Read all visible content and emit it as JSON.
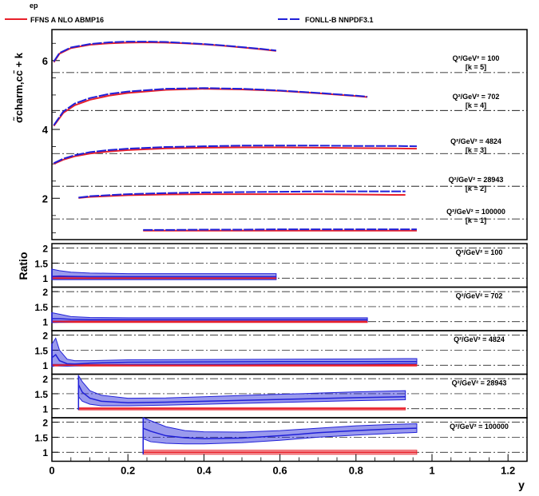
{
  "legend": {
    "header": "ep",
    "entries": [
      {
        "label": "FFNS A NLO ABMP16",
        "color": "#e8202a"
      },
      {
        "label": "FONLL-B NNPDF3.1",
        "color": "#2020d8"
      }
    ]
  },
  "chart_data": {
    "type": "line",
    "xlabel": "y",
    "x_ticks": [
      "0",
      "0.2",
      "0.4",
      "0.6",
      "0.8",
      "1",
      "1.2"
    ],
    "xlim": [
      0,
      1.25
    ],
    "top_panel": {
      "ylabel": "σ̃charm,cc̄ + k",
      "ylim": [
        0.8,
        6.9
      ],
      "y_ticks": [
        "2",
        "4",
        "6"
      ],
      "series_colors": {
        "ffns": "#e8202a",
        "fonll": "#2020d8"
      },
      "curves": [
        {
          "q2_label": "Q²/GeV² = 100",
          "k_label": "[k = 5]",
          "k": 5,
          "x": [
            0.005,
            0.02,
            0.05,
            0.1,
            0.15,
            0.2,
            0.25,
            0.3,
            0.35,
            0.4,
            0.45,
            0.5,
            0.55,
            0.59
          ],
          "ffns": [
            5.95,
            6.2,
            6.36,
            6.46,
            6.5,
            6.52,
            6.53,
            6.52,
            6.5,
            6.47,
            6.43,
            6.38,
            6.33,
            6.28
          ],
          "fonll": [
            5.97,
            6.22,
            6.38,
            6.48,
            6.53,
            6.55,
            6.55,
            6.54,
            6.51,
            6.48,
            6.44,
            6.39,
            6.34,
            6.29
          ]
        },
        {
          "q2_label": "Q²/GeV² = 702",
          "k_label": "[k = 4]",
          "k": 4,
          "x": [
            0.005,
            0.03,
            0.06,
            0.1,
            0.15,
            0.2,
            0.3,
            0.4,
            0.5,
            0.6,
            0.7,
            0.8,
            0.83
          ],
          "ffns": [
            4.1,
            4.48,
            4.7,
            4.86,
            4.98,
            5.06,
            5.15,
            5.18,
            5.16,
            5.12,
            5.05,
            4.97,
            4.94
          ],
          "fonll": [
            4.12,
            4.52,
            4.75,
            4.91,
            5.03,
            5.1,
            5.18,
            5.2,
            5.18,
            5.13,
            5.06,
            4.98,
            4.95
          ]
        },
        {
          "q2_label": "Q²/GeV² = 4824",
          "k_label": "[k = 3]",
          "k": 3,
          "x": [
            0.005,
            0.03,
            0.06,
            0.1,
            0.15,
            0.2,
            0.3,
            0.4,
            0.5,
            0.6,
            0.7,
            0.8,
            0.9,
            0.96
          ],
          "ffns": [
            3.0,
            3.12,
            3.22,
            3.3,
            3.36,
            3.4,
            3.45,
            3.47,
            3.48,
            3.48,
            3.47,
            3.46,
            3.45,
            3.44
          ],
          "fonll": [
            3.02,
            3.15,
            3.25,
            3.34,
            3.4,
            3.44,
            3.49,
            3.51,
            3.53,
            3.53,
            3.53,
            3.52,
            3.52,
            3.51
          ]
        },
        {
          "q2_label": "Q²/GeV² = 28943",
          "k_label": "[k = 2]",
          "k": 2,
          "x": [
            0.07,
            0.1,
            0.2,
            0.3,
            0.4,
            0.5,
            0.6,
            0.7,
            0.8,
            0.9,
            0.93
          ],
          "ffns": [
            2.01,
            2.04,
            2.09,
            2.11,
            2.12,
            2.12,
            2.12,
            2.12,
            2.11,
            2.1,
            2.1
          ],
          "fonll": [
            2.02,
            2.06,
            2.12,
            2.15,
            2.17,
            2.18,
            2.19,
            2.2,
            2.2,
            2.2,
            2.2
          ]
        },
        {
          "q2_label": "Q²/GeV² = 100000",
          "k_label": "[k = 1]",
          "k": 1,
          "x": [
            0.24,
            0.3,
            0.4,
            0.5,
            0.6,
            0.7,
            0.8,
            0.9,
            0.96
          ],
          "ffns": [
            1.06,
            1.06,
            1.06,
            1.06,
            1.06,
            1.06,
            1.06,
            1.06,
            1.06
          ],
          "fonll": [
            1.08,
            1.08,
            1.09,
            1.09,
            1.1,
            1.1,
            1.1,
            1.1,
            1.1
          ]
        }
      ]
    },
    "ratio_panels": {
      "ylabel": "Ratio",
      "ylim": [
        0.7,
        2.15
      ],
      "y_ticks": [
        "1",
        "1.5",
        "2"
      ],
      "panels": [
        {
          "label": "Q²/GeV² = 100",
          "x": [
            0.0,
            0.02,
            0.05,
            0.1,
            0.2,
            0.3,
            0.4,
            0.5,
            0.59
          ],
          "ffns": [
            1.0,
            1.0,
            1.0,
            1.0,
            1.0,
            1.0,
            1.0,
            1.0,
            1.0
          ],
          "ffns_lo": [
            0.96,
            0.96,
            0.96,
            0.96,
            0.96,
            0.96,
            0.96,
            0.96,
            0.96
          ],
          "ffns_hi": [
            1.04,
            1.04,
            1.04,
            1.04,
            1.04,
            1.04,
            1.04,
            1.04,
            1.04
          ],
          "fonll": [
            1.06,
            1.07,
            1.06,
            1.05,
            1.05,
            1.05,
            1.05,
            1.05,
            1.05
          ],
          "fonll_lo": [
            0.95,
            0.95,
            0.95,
            0.95,
            0.95,
            0.95,
            0.95,
            0.95,
            0.95
          ],
          "fonll_hi": [
            1.3,
            1.25,
            1.2,
            1.17,
            1.15,
            1.15,
            1.15,
            1.15,
            1.15
          ]
        },
        {
          "label": "Q²/GeV² = 702",
          "x": [
            0.0,
            0.02,
            0.05,
            0.1,
            0.2,
            0.3,
            0.4,
            0.5,
            0.6,
            0.7,
            0.83
          ],
          "ffns": [
            1.0,
            1.0,
            1.0,
            1.0,
            1.0,
            1.0,
            1.0,
            1.0,
            1.0,
            1.0,
            1.0
          ],
          "ffns_lo": [
            0.97,
            0.97,
            0.97,
            0.97,
            0.97,
            0.97,
            0.97,
            0.97,
            0.97,
            0.97,
            0.97
          ],
          "ffns_hi": [
            1.03,
            1.03,
            1.03,
            1.03,
            1.03,
            1.03,
            1.03,
            1.03,
            1.03,
            1.03,
            1.03
          ],
          "fonll": [
            1.1,
            1.1,
            1.08,
            1.07,
            1.07,
            1.07,
            1.07,
            1.07,
            1.07,
            1.07,
            1.07
          ],
          "fonll_lo": [
            0.97,
            0.98,
            0.99,
            1.0,
            1.0,
            1.0,
            1.0,
            1.0,
            1.0,
            1.0,
            1.0
          ],
          "fonll_hi": [
            1.3,
            1.25,
            1.17,
            1.14,
            1.13,
            1.13,
            1.13,
            1.13,
            1.13,
            1.13,
            1.13
          ]
        },
        {
          "label": "Q²/GeV² = 4824",
          "x": [
            0.0,
            0.01,
            0.02,
            0.04,
            0.06,
            0.1,
            0.2,
            0.4,
            0.6,
            0.8,
            0.96
          ],
          "ffns": [
            1.0,
            1.0,
            1.0,
            1.0,
            1.0,
            1.0,
            1.0,
            1.0,
            1.0,
            1.0,
            1.0
          ],
          "ffns_lo": [
            0.97,
            0.97,
            0.97,
            0.97,
            0.97,
            0.97,
            0.97,
            0.97,
            0.97,
            0.97,
            0.97
          ],
          "ffns_hi": [
            1.03,
            1.03,
            1.03,
            1.03,
            1.03,
            1.03,
            1.03,
            1.03,
            1.03,
            1.03,
            1.03
          ],
          "fonll": [
            1.25,
            1.35,
            1.15,
            1.05,
            1.04,
            1.07,
            1.1,
            1.11,
            1.12,
            1.12,
            1.12
          ],
          "fonll_lo": [
            0.95,
            1.0,
            0.98,
            0.97,
            0.98,
            1.0,
            1.02,
            1.03,
            1.04,
            1.04,
            1.05
          ],
          "fonll_hi": [
            1.7,
            1.9,
            1.5,
            1.2,
            1.15,
            1.15,
            1.18,
            1.19,
            1.2,
            1.21,
            1.22
          ]
        },
        {
          "label": "Q²/GeV² = 28943",
          "x": [
            0.07,
            0.08,
            0.1,
            0.13,
            0.2,
            0.3,
            0.4,
            0.5,
            0.6,
            0.7,
            0.8,
            0.93
          ],
          "ffns": [
            1.0,
            1.0,
            1.0,
            1.0,
            1.0,
            1.0,
            1.0,
            1.0,
            1.0,
            1.0,
            1.0,
            1.0
          ],
          "ffns_lo": [
            0.96,
            0.96,
            0.96,
            0.96,
            0.96,
            0.96,
            0.96,
            0.96,
            0.96,
            0.96,
            0.96,
            0.96
          ],
          "ffns_hi": [
            1.04,
            1.04,
            1.04,
            1.04,
            1.04,
            1.04,
            1.04,
            1.04,
            1.04,
            1.04,
            1.04,
            1.04
          ],
          "fonll": [
            1.8,
            1.55,
            1.35,
            1.25,
            1.2,
            1.22,
            1.25,
            1.28,
            1.31,
            1.34,
            1.37,
            1.4
          ],
          "fonll_lo": [
            1.4,
            1.25,
            1.15,
            1.1,
            1.1,
            1.12,
            1.15,
            1.18,
            1.21,
            1.24,
            1.27,
            1.3
          ],
          "fonll_hi": [
            2.1,
            1.9,
            1.6,
            1.45,
            1.35,
            1.36,
            1.4,
            1.44,
            1.48,
            1.52,
            1.56,
            1.6
          ]
        },
        {
          "label": "Q²/GeV² = 100000",
          "x": [
            0.24,
            0.26,
            0.3,
            0.35,
            0.4,
            0.5,
            0.6,
            0.7,
            0.8,
            0.9,
            0.96
          ],
          "ffns": [
            1.0,
            1.0,
            1.0,
            1.0,
            1.0,
            1.0,
            1.0,
            1.0,
            1.0,
            1.0,
            1.0
          ],
          "ffns_lo": [
            0.93,
            0.93,
            0.93,
            0.93,
            0.93,
            0.93,
            0.93,
            0.93,
            0.93,
            0.93,
            0.93
          ],
          "ffns_hi": [
            1.07,
            1.07,
            1.07,
            1.07,
            1.07,
            1.07,
            1.07,
            1.07,
            1.07,
            1.07,
            1.07
          ],
          "fonll": [
            1.8,
            1.7,
            1.55,
            1.48,
            1.45,
            1.47,
            1.55,
            1.65,
            1.72,
            1.78,
            1.8
          ],
          "fonll_lo": [
            1.45,
            1.35,
            1.3,
            1.28,
            1.28,
            1.32,
            1.4,
            1.5,
            1.57,
            1.63,
            1.66
          ],
          "fonll_hi": [
            2.15,
            2.05,
            1.85,
            1.72,
            1.68,
            1.67,
            1.72,
            1.8,
            1.88,
            1.93,
            1.95
          ]
        }
      ]
    }
  }
}
